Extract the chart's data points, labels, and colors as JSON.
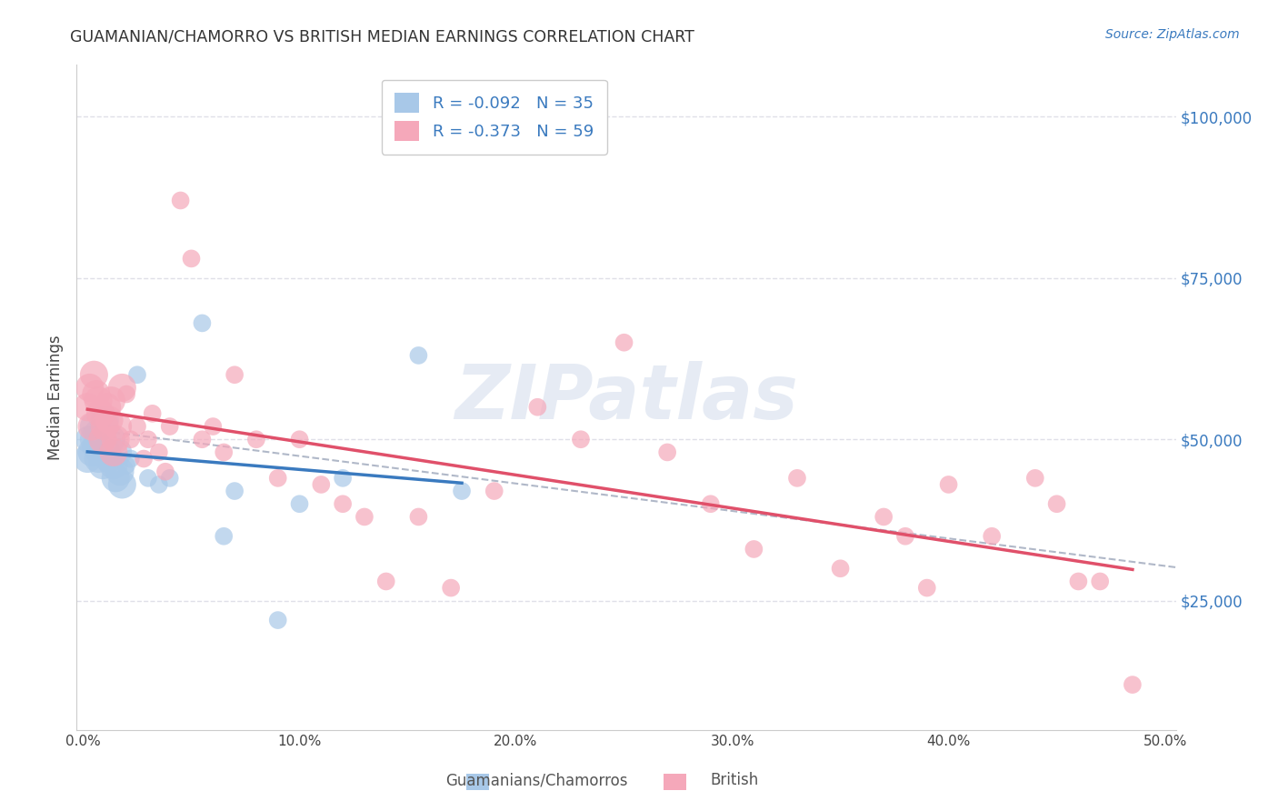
{
  "title": "GUAMANIAN/CHAMORRO VS BRITISH MEDIAN EARNINGS CORRELATION CHART",
  "source": "Source: ZipAtlas.com",
  "ylabel": "Median Earnings",
  "yticks": [
    25000,
    50000,
    75000,
    100000
  ],
  "ytick_labels": [
    "$25,000",
    "$50,000",
    "$75,000",
    "$100,000"
  ],
  "xticks": [
    0.0,
    0.1,
    0.2,
    0.3,
    0.4,
    0.5
  ],
  "xtick_labels": [
    "0.0%",
    "10.0%",
    "20.0%",
    "30.0%",
    "40.0%",
    "50.0%"
  ],
  "xlim": [
    -0.003,
    0.505
  ],
  "ylim": [
    5000,
    108000
  ],
  "legend_labels": [
    "Guamanians/Chamorros",
    "British"
  ],
  "blue_color": "#a8c8e8",
  "pink_color": "#f5a8ba",
  "blue_line_color": "#3a7abf",
  "pink_line_color": "#e0506a",
  "blue_r": -0.092,
  "blue_n": 35,
  "pink_r": -0.373,
  "pink_n": 59,
  "blue_points_x": [
    0.002,
    0.003,
    0.004,
    0.005,
    0.005,
    0.006,
    0.007,
    0.007,
    0.008,
    0.008,
    0.009,
    0.01,
    0.01,
    0.011,
    0.012,
    0.013,
    0.014,
    0.015,
    0.016,
    0.017,
    0.018,
    0.02,
    0.022,
    0.025,
    0.03,
    0.035,
    0.04,
    0.055,
    0.065,
    0.07,
    0.09,
    0.1,
    0.12,
    0.155,
    0.175
  ],
  "blue_points_y": [
    47000,
    50000,
    48000,
    52000,
    50000,
    49000,
    51000,
    47000,
    50000,
    48000,
    46000,
    53000,
    49000,
    48000,
    47000,
    50000,
    46000,
    44000,
    48000,
    45000,
    43000,
    46000,
    47000,
    60000,
    44000,
    43000,
    44000,
    68000,
    35000,
    42000,
    22000,
    40000,
    44000,
    63000,
    42000
  ],
  "pink_points_x": [
    0.002,
    0.003,
    0.004,
    0.005,
    0.006,
    0.007,
    0.008,
    0.009,
    0.01,
    0.011,
    0.012,
    0.013,
    0.014,
    0.015,
    0.016,
    0.018,
    0.02,
    0.022,
    0.025,
    0.028,
    0.03,
    0.032,
    0.035,
    0.038,
    0.04,
    0.045,
    0.05,
    0.055,
    0.06,
    0.065,
    0.07,
    0.08,
    0.09,
    0.1,
    0.11,
    0.12,
    0.13,
    0.14,
    0.155,
    0.17,
    0.19,
    0.21,
    0.23,
    0.25,
    0.27,
    0.29,
    0.31,
    0.33,
    0.35,
    0.37,
    0.38,
    0.39,
    0.4,
    0.42,
    0.44,
    0.45,
    0.46,
    0.47,
    0.485
  ],
  "pink_points_y": [
    55000,
    58000,
    52000,
    60000,
    57000,
    56000,
    54000,
    50000,
    52000,
    55000,
    53000,
    56000,
    48000,
    50000,
    52000,
    58000,
    57000,
    50000,
    52000,
    47000,
    50000,
    54000,
    48000,
    45000,
    52000,
    87000,
    78000,
    50000,
    52000,
    48000,
    60000,
    50000,
    44000,
    50000,
    43000,
    40000,
    38000,
    28000,
    38000,
    27000,
    42000,
    55000,
    50000,
    65000,
    48000,
    40000,
    33000,
    44000,
    30000,
    38000,
    35000,
    27000,
    43000,
    35000,
    44000,
    40000,
    28000,
    28000,
    12000
  ],
  "watermark": "ZIPatlas",
  "background_color": "#ffffff",
  "grid_color": "#e0e0e8"
}
